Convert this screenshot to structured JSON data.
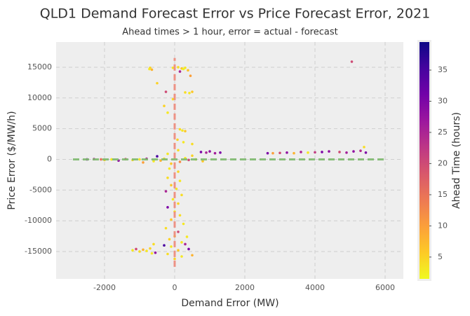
{
  "chart_data": {
    "type": "scatter",
    "title": "QLD1 Demand Forecast Error vs Price Forecast Error, 2021",
    "subtitle": "Ahead times > 1 hour, error = actual - forecast",
    "x_label": "Demand Error (MW)",
    "y_label": "Price Error ($/MW/h)",
    "colorbar_label": "Ahead Time (hours)",
    "xlim": [
      -3380,
      6520
    ],
    "xticks": [
      -2000,
      0,
      2000,
      4000,
      6000
    ],
    "ylim": [
      -19450,
      19100
    ],
    "yticks": [
      -15000,
      -10000,
      -5000,
      0,
      5000,
      10000,
      15000
    ],
    "clim": [
      1.5,
      39.5
    ],
    "cticks": [
      5,
      10,
      15,
      20,
      25,
      30,
      35
    ],
    "colormap": [
      "#f0f921",
      "#fdca26",
      "#fb9f3a",
      "#ed7953",
      "#d8576b",
      "#bd3786",
      "#9c179e",
      "#7201a8",
      "#46039f",
      "#0d0887"
    ],
    "grid": true,
    "vline": {
      "x": 0,
      "y_range": [
        -17500,
        16500
      ],
      "color": "#ef8a7a"
    },
    "hline": {
      "y": 0,
      "x_range": [
        -2900,
        6000
      ],
      "color": "#80bb70"
    },
    "x": [
      -700,
      -650,
      -720,
      -50,
      100,
      200,
      300,
      380,
      150,
      250,
      450,
      -500,
      300,
      420,
      500,
      -250,
      -50,
      -300,
      -200,
      150,
      220,
      300,
      80,
      250,
      500,
      -2500,
      -2300,
      -2100,
      -2000,
      -1800,
      -1600,
      -1400,
      -1200,
      -1000,
      -900,
      -800,
      -600,
      -500,
      -400,
      -300,
      -200,
      -100,
      100,
      150,
      300,
      400,
      500,
      600,
      750,
      900,
      1000,
      1150,
      1300,
      800,
      2650,
      2800,
      3000,
      3200,
      3400,
      3600,
      3800,
      4000,
      4200,
      4400,
      4700,
      4900,
      5100,
      5300,
      5450,
      5400,
      5050,
      -150,
      100,
      -200,
      150,
      -100,
      50,
      -250,
      200,
      -50,
      100,
      -200,
      0,
      150,
      -100,
      250,
      -250,
      100,
      0,
      -150,
      200,
      300,
      -100,
      100,
      400,
      -200,
      200,
      0,
      500,
      -300,
      350,
      -1200,
      -1100,
      -1000,
      -900,
      -800,
      -700,
      -650,
      -550,
      -600
    ],
    "values": [
      14900,
      14600,
      14700,
      14900,
      15000,
      14800,
      14900,
      14500,
      14300,
      14700,
      13600,
      12400,
      10900,
      10800,
      11000,
      11000,
      9800,
      8700,
      7600,
      4900,
      4700,
      4600,
      3200,
      2800,
      2500,
      0,
      50,
      0,
      -100,
      0,
      -200,
      50,
      -100,
      0,
      -500,
      100,
      -300,
      500,
      -200,
      100,
      900,
      -700,
      1500,
      -400,
      200,
      -100,
      600,
      0,
      1200,
      1100,
      1300,
      1000,
      1100,
      -300,
      1000,
      1000,
      1050,
      1100,
      1000,
      1200,
      1100,
      1150,
      1200,
      1300,
      1200,
      1100,
      1300,
      1400,
      1100,
      2000,
      15900,
      -1500,
      -2000,
      -3000,
      -3500,
      -4200,
      -4800,
      -5200,
      -5800,
      -6500,
      -7200,
      -7800,
      -8500,
      -9100,
      -9800,
      -10500,
      -11200,
      -11800,
      -12500,
      -13000,
      -13500,
      -13800,
      -14200,
      -14800,
      -14600,
      -15400,
      -15800,
      -16200,
      -15600,
      -14000,
      -12600,
      -14800,
      -14600,
      -15000,
      -14700,
      -14900,
      -14500,
      -15300,
      -15200,
      -13800
    ],
    "ahead_time": [
      5,
      8,
      3,
      3,
      4,
      6,
      3,
      7,
      25,
      2,
      10,
      5,
      4,
      3,
      6,
      20,
      4,
      5,
      3,
      4,
      3,
      6,
      5,
      3,
      4,
      30,
      25,
      15,
      5,
      3,
      28,
      20,
      4,
      3,
      10,
      25,
      3,
      35,
      8,
      4,
      3,
      6,
      4,
      12,
      3,
      20,
      5,
      3,
      30,
      25,
      28,
      26,
      30,
      6,
      30,
      10,
      20,
      28,
      8,
      25,
      3,
      22,
      30,
      28,
      20,
      26,
      28,
      24,
      30,
      4,
      20,
      3,
      5,
      4,
      3,
      6,
      3,
      25,
      4,
      3,
      5,
      30,
      3,
      4,
      6,
      3,
      4,
      20,
      3,
      5,
      3,
      25,
      3,
      6,
      30,
      4,
      3,
      5,
      8,
      35,
      3,
      3,
      20,
      4,
      8,
      3,
      5,
      3,
      28,
      4
    ]
  }
}
